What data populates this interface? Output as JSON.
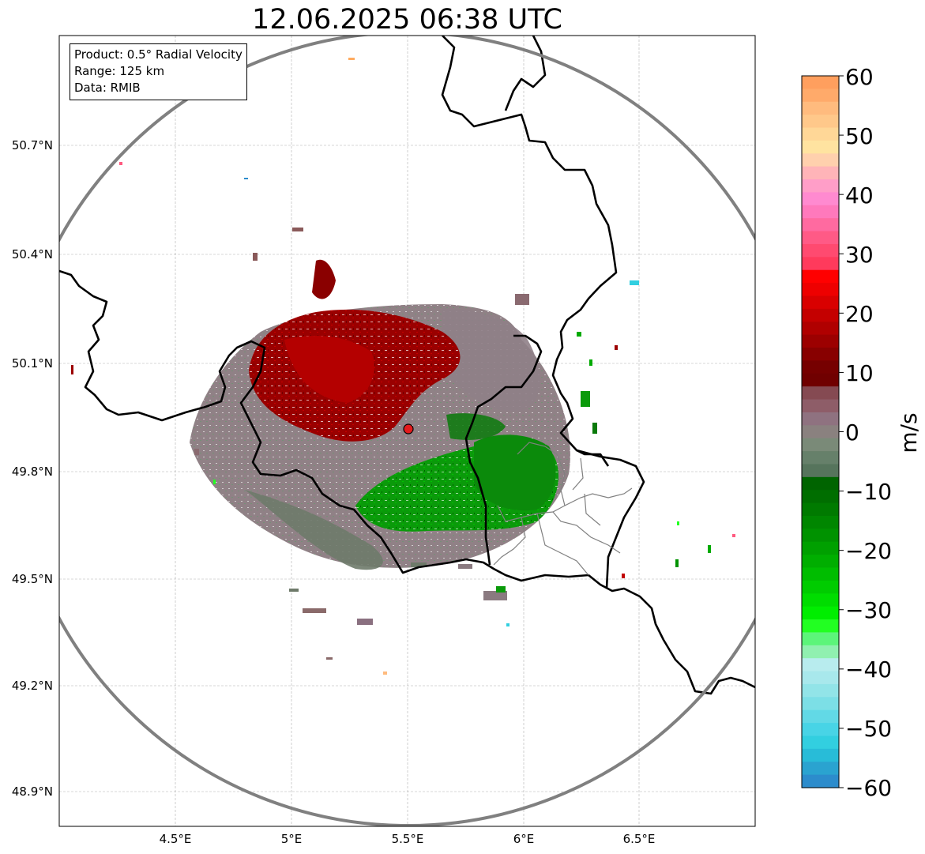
{
  "title": "12.06.2025 06:38 UTC",
  "info": {
    "product": "Product: 0.5° Radial Velocity",
    "range": "Range: 125 km",
    "source": "Data: RMIB"
  },
  "axes": {
    "lat_ticks": [
      "50.7°N",
      "50.4°N",
      "50.1°N",
      "49.8°N",
      "49.5°N",
      "49.2°N",
      "48.9°N"
    ],
    "lon_ticks": [
      "4.5°E",
      "5°E",
      "5.5°E",
      "6°E",
      "6.5°E"
    ]
  },
  "colorbar": {
    "unit": "m/s",
    "ticks": [
      "60",
      "50",
      "40",
      "30",
      "20",
      "10",
      "0",
      "−10",
      "−20",
      "−30",
      "−40",
      "−50",
      "−60"
    ],
    "colors": [
      "#ff9f5e",
      "#ffaa6a",
      "#ffbb7e",
      "#ffc88a",
      "#ffd797",
      "#ffe3a0",
      "#ffd0ad",
      "#ffb4b8",
      "#ff9ec8",
      "#ff8ad0",
      "#ff79bc",
      "#ff6aa0",
      "#ff5a86",
      "#ff4a70",
      "#ff3a5c",
      "#ff0000",
      "#ee0000",
      "#d90000",
      "#c40000",
      "#b00000",
      "#9c0000",
      "#880000",
      "#760000",
      "#700000",
      "#854a52",
      "#8e5d68",
      "#8f7280",
      "#8a817f",
      "#7a8a78",
      "#66806a",
      "#56745c",
      "#006400",
      "#006e00",
      "#007a00",
      "#008600",
      "#009200",
      "#00a000",
      "#00ae00",
      "#00bd00",
      "#00cc00",
      "#00dd00",
      "#00ee00",
      "#22ff22",
      "#5cf57a",
      "#90f0b0",
      "#b8ecee",
      "#a8e8ec",
      "#92e4e8",
      "#7cdfe6",
      "#62d9e6",
      "#48d4e6",
      "#32cfe0",
      "#28bcd8",
      "#2aa3d0",
      "#2c8ccc"
    ],
    "range": [
      -60,
      60
    ]
  },
  "map": {
    "radar_site": "radar-site",
    "coverage": "range ring"
  }
}
